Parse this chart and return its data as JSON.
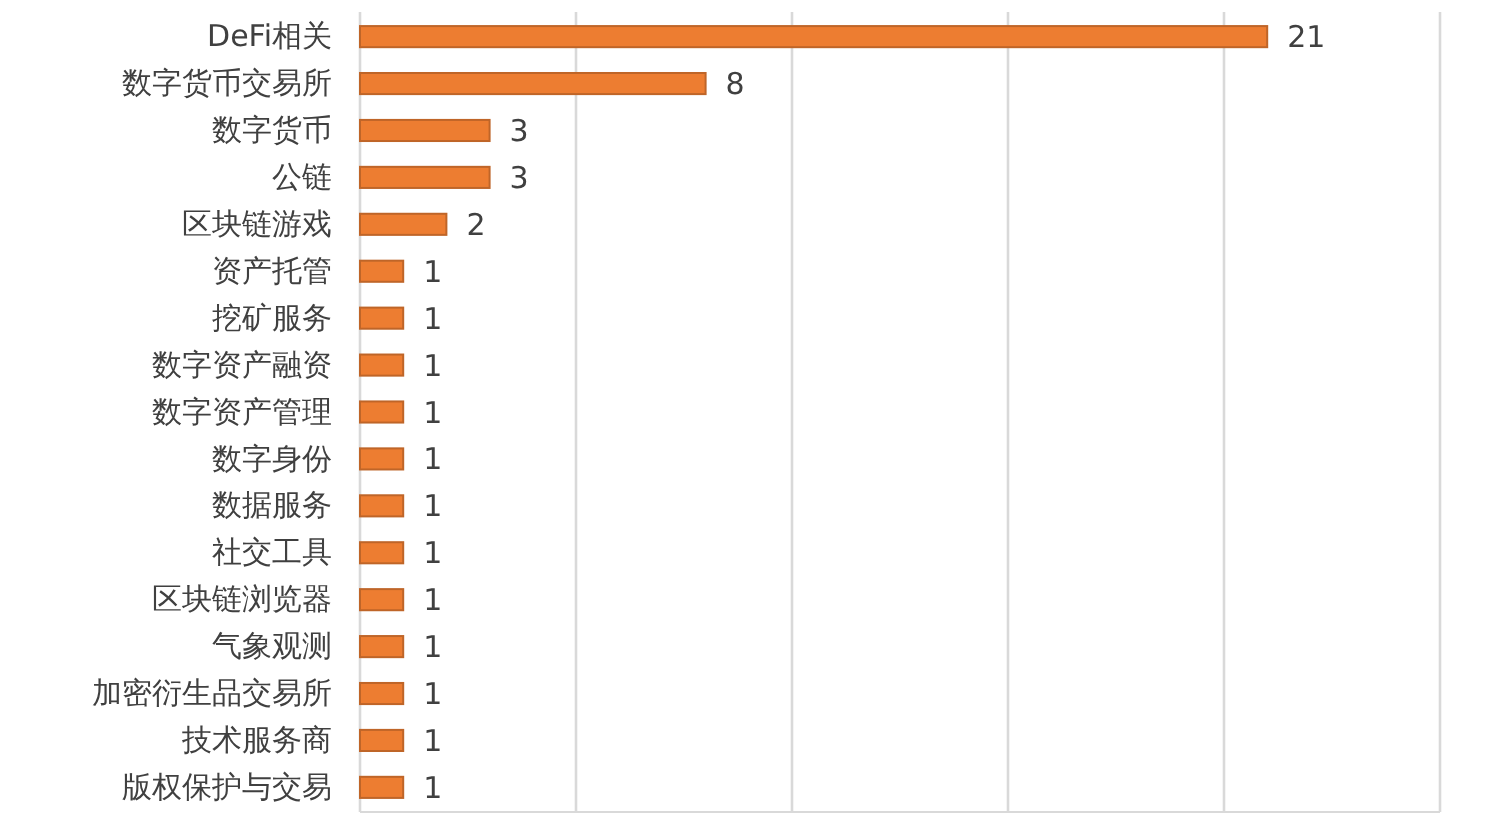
{
  "chart_data": {
    "type": "bar",
    "orientation": "horizontal",
    "categories": [
      "DeFi相关",
      "数字货币交易所",
      "数字货币",
      "公链",
      "区块链游戏",
      "资产托管",
      "挖矿服务",
      "数字资产融资",
      "数字资产管理",
      "数字身份",
      "数据服务",
      "社交工具",
      "区块链浏览器",
      "气象观测",
      "加密衍生品交易所",
      "技术服务商",
      "版权保护与交易"
    ],
    "values": [
      21,
      8,
      3,
      3,
      2,
      1,
      1,
      1,
      1,
      1,
      1,
      1,
      1,
      1,
      1,
      1,
      1
    ],
    "color": "#ed7d31",
    "xlim": [
      0,
      25
    ],
    "xticks": [
      {
        "value": 0,
        "label": null
      },
      {
        "value": 5,
        "label": null
      },
      {
        "value": 10,
        "label": null
      },
      {
        "value": 15,
        "label": null
      },
      {
        "value": 20,
        "label": null
      },
      {
        "value": 25,
        "label": null
      }
    ],
    "tick_labels": "y",
    "grid": "x",
    "data_labels": true
  }
}
